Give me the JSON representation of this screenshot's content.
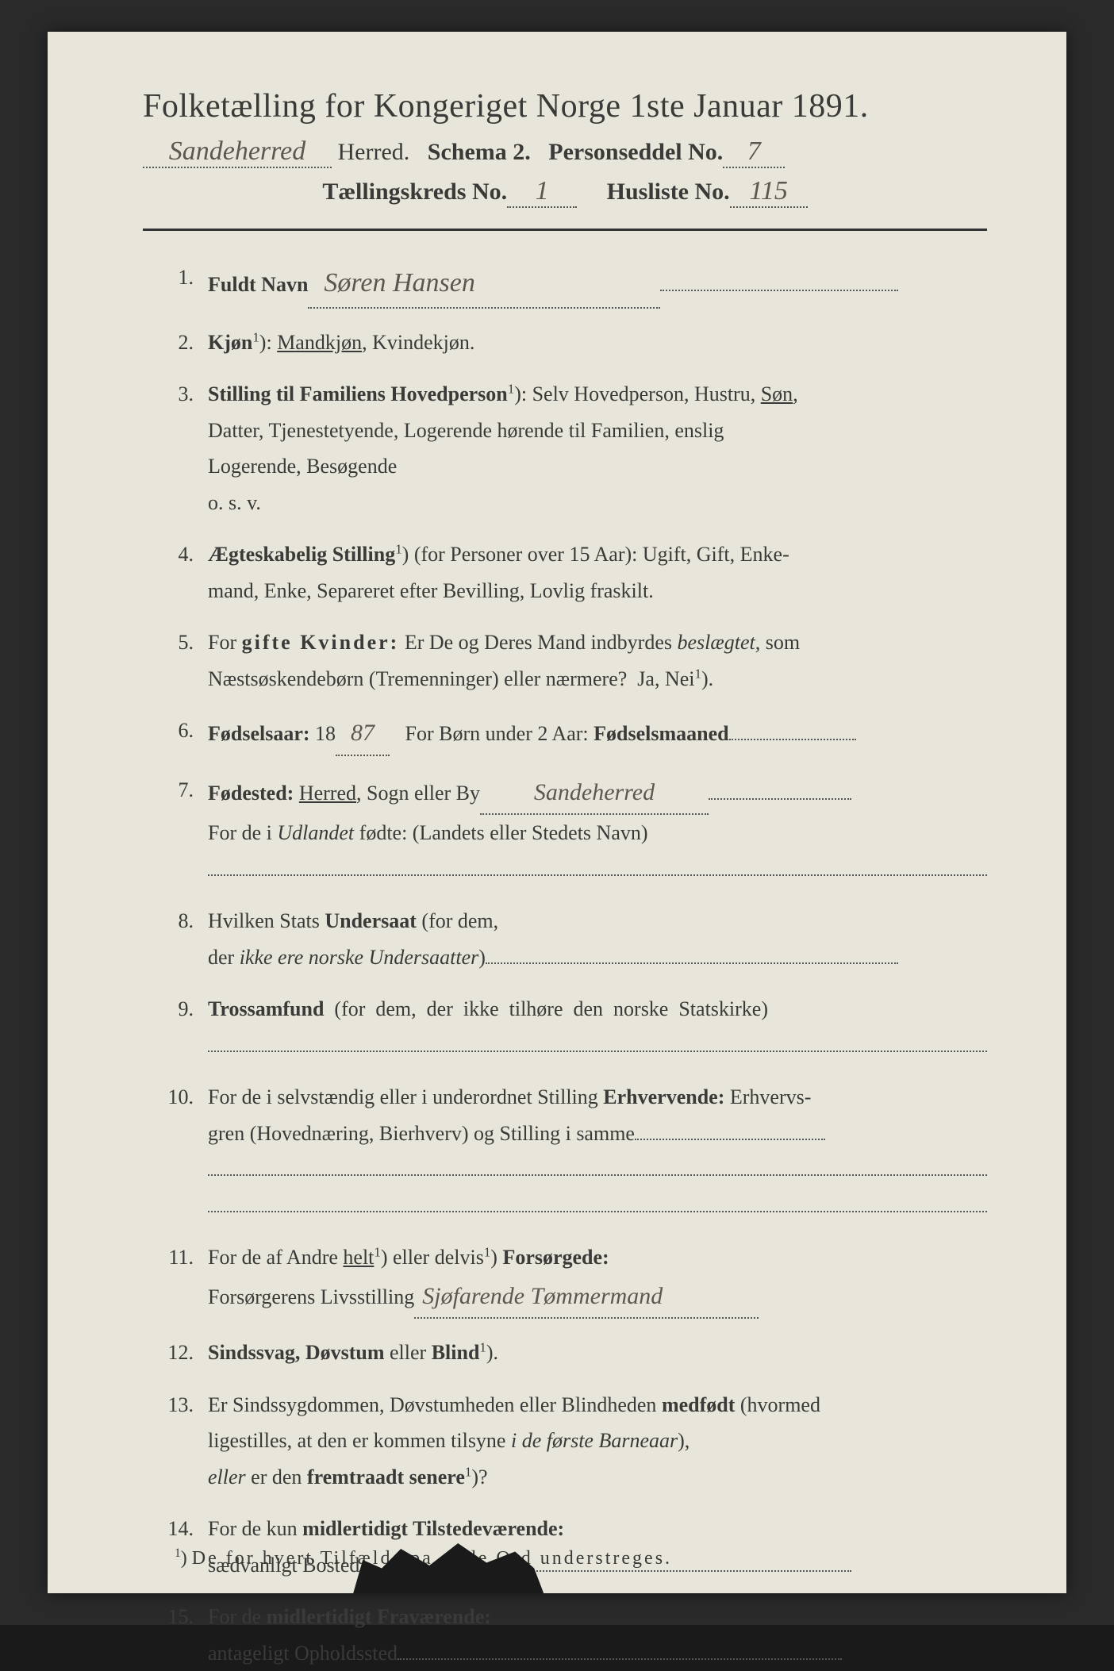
{
  "background_color": "#1a1a1a",
  "paper_color": "#e8e6da",
  "print_color": "#3a3a38",
  "handwriting_color": "#5a5850",
  "title": "Folketælling for Kongeriget Norge 1ste Januar 1891.",
  "header": {
    "herred_hw": "Sandeherred",
    "herred_label": "Herred.",
    "schema": "Schema 2.",
    "personseddel_label": "Personseddel No.",
    "personseddel_hw": "7",
    "kreds_label": "Tællingskreds No.",
    "kreds_hw": "1",
    "husliste_label": "Husliste No.",
    "husliste_hw": "115"
  },
  "items": [
    {
      "n": "1.",
      "label": "Fuldt Navn",
      "hw": "Søren Hansen"
    },
    {
      "n": "2.",
      "html": "<span class='bold'>Kjøn</span><span class='sup'>1</span>): <span class='ul'>Mandkjøn</span>, Kvindekjøn."
    },
    {
      "n": "3.",
      "lines": [
        "<span class='bold'>Stilling til Familiens Hovedperson</span><span class='sup'>1</span>): Selv Hovedperson, Hustru, <span class='ul'>Søn</span>,",
        "Datter, Tjenestetyende, Logerende hørende til Familien, enslig",
        "Logerende, Besøgende",
        "o. s. v."
      ]
    },
    {
      "n": "4.",
      "lines": [
        "<span class='bold'>Ægteskabelig Stilling</span><span class='sup'>1</span>) (for Personer over 15 Aar): Ugift, Gift, Enke-",
        "mand, Enke, Separeret efter Bevilling, Lovlig fraskilt."
      ]
    },
    {
      "n": "5.",
      "lines": [
        "For <span class='bold spaced'>gifte Kvinder:</span> Er De og Deres Mand indbyrdes <em>beslægtet,</em> som",
        "Næstsøskendebørn (Tremenninger) eller nærmere?&nbsp;&nbsp;Ja, Nei<span class='sup'>1</span>)."
      ]
    },
    {
      "n": "6.",
      "html": "<span class='bold'>Fødselsaar:</span> 18<span class='dotted' style='min-width:60px'><span class='hw-sm'>87</span></span>&nbsp;&nbsp;&nbsp;For Børn under 2 Aar: <span class='bold'>Fødselsmaaned</span><span class='fill-line' style='width:160px'></span>"
    },
    {
      "n": "7.",
      "lines": [
        "<span class='bold'>Fødested:</span> <span class='ul'>Herred</span>, Sogn eller By<span class='dotted' style='min-width:280px'><span class='hw-sm'>Sandeherred</span></span><span class='fill-line' style='width:180px'></span>",
        "For de i <em>Udlandet</em> fødte: (Landets eller Stedets Navn)",
        "<span class='fill-line' style='width:100%'></span>"
      ]
    },
    {
      "n": "8.",
      "lines": [
        "Hvilken Stats <span class='bold'>Undersaat</span> (for dem,",
        "der <em>ikke ere norske Undersaatter</em>)<span class='fill-line' style='width:520px'></span>"
      ]
    },
    {
      "n": "9.",
      "lines": [
        "<span class='bold'>Trossamfund</span>&nbsp;&nbsp;(for&nbsp;&nbsp;dem,&nbsp;&nbsp;der&nbsp;&nbsp;ikke&nbsp;&nbsp;tilhøre&nbsp;&nbsp;den&nbsp;&nbsp;norske&nbsp;&nbsp;Statskirke)",
        "<span class='fill-line' style='width:100%'></span>"
      ]
    },
    {
      "n": "10.",
      "lines": [
        "For de i selvstændig eller i underordnet Stilling <span class='bold'>Erhvervende:</span> Erhvervs-",
        "gren (Hovednæring, Bierhverv) og Stilling i samme<span class='fill-line' style='width:240px'></span>",
        "<span class='fill-line' style='width:100%'></span>",
        "<span class='fill-line' style='width:100%'></span>"
      ]
    },
    {
      "n": "11.",
      "lines": [
        "For de af Andre <span class='ul'>helt</span><span class='sup'>1</span>) eller delvis<span class='sup'>1</span>) <span class='bold'>Forsørgede:</span>",
        "Forsørgerens Livsstilling<span class='dotted' style='min-width:420px;text-align:left;padding-left:10px'><span class='hw-sm'>Sjøfarende Tømmermand</span></span>"
      ]
    },
    {
      "n": "12.",
      "html": "<span class='bold'>Sindssvag, Døvstum</span> eller <span class='bold'>Blind</span><span class='sup'>1</span>)."
    },
    {
      "n": "13.",
      "lines": [
        "Er Sindssygdommen, Døvstumheden eller Blindheden <span class='bold'>medfødt</span> (hvormed",
        "ligestilles, at den er kommen tilsyne <em>i de første Barneaar</em>),",
        "<em>eller</em> er den <span class='bold'>fremtraadt senere</span><span class='sup'>1</span>)?"
      ]
    },
    {
      "n": "14.",
      "lines": [
        "For de kun <span class='bold'>midlertidigt Tilstedeværende:</span>",
        "sædvanligt Bosted<span class='fill-line' style='width:620px'></span>"
      ]
    },
    {
      "n": "15.",
      "lines": [
        "For de <span class='bold'>midlertidigt Fraværende:</span>",
        "antageligt Opholdssted<span class='fill-line' style='width:560px'></span>"
      ]
    }
  ],
  "footnote": "¹) De for hvert Tilfælde pa      de Ord understreges."
}
